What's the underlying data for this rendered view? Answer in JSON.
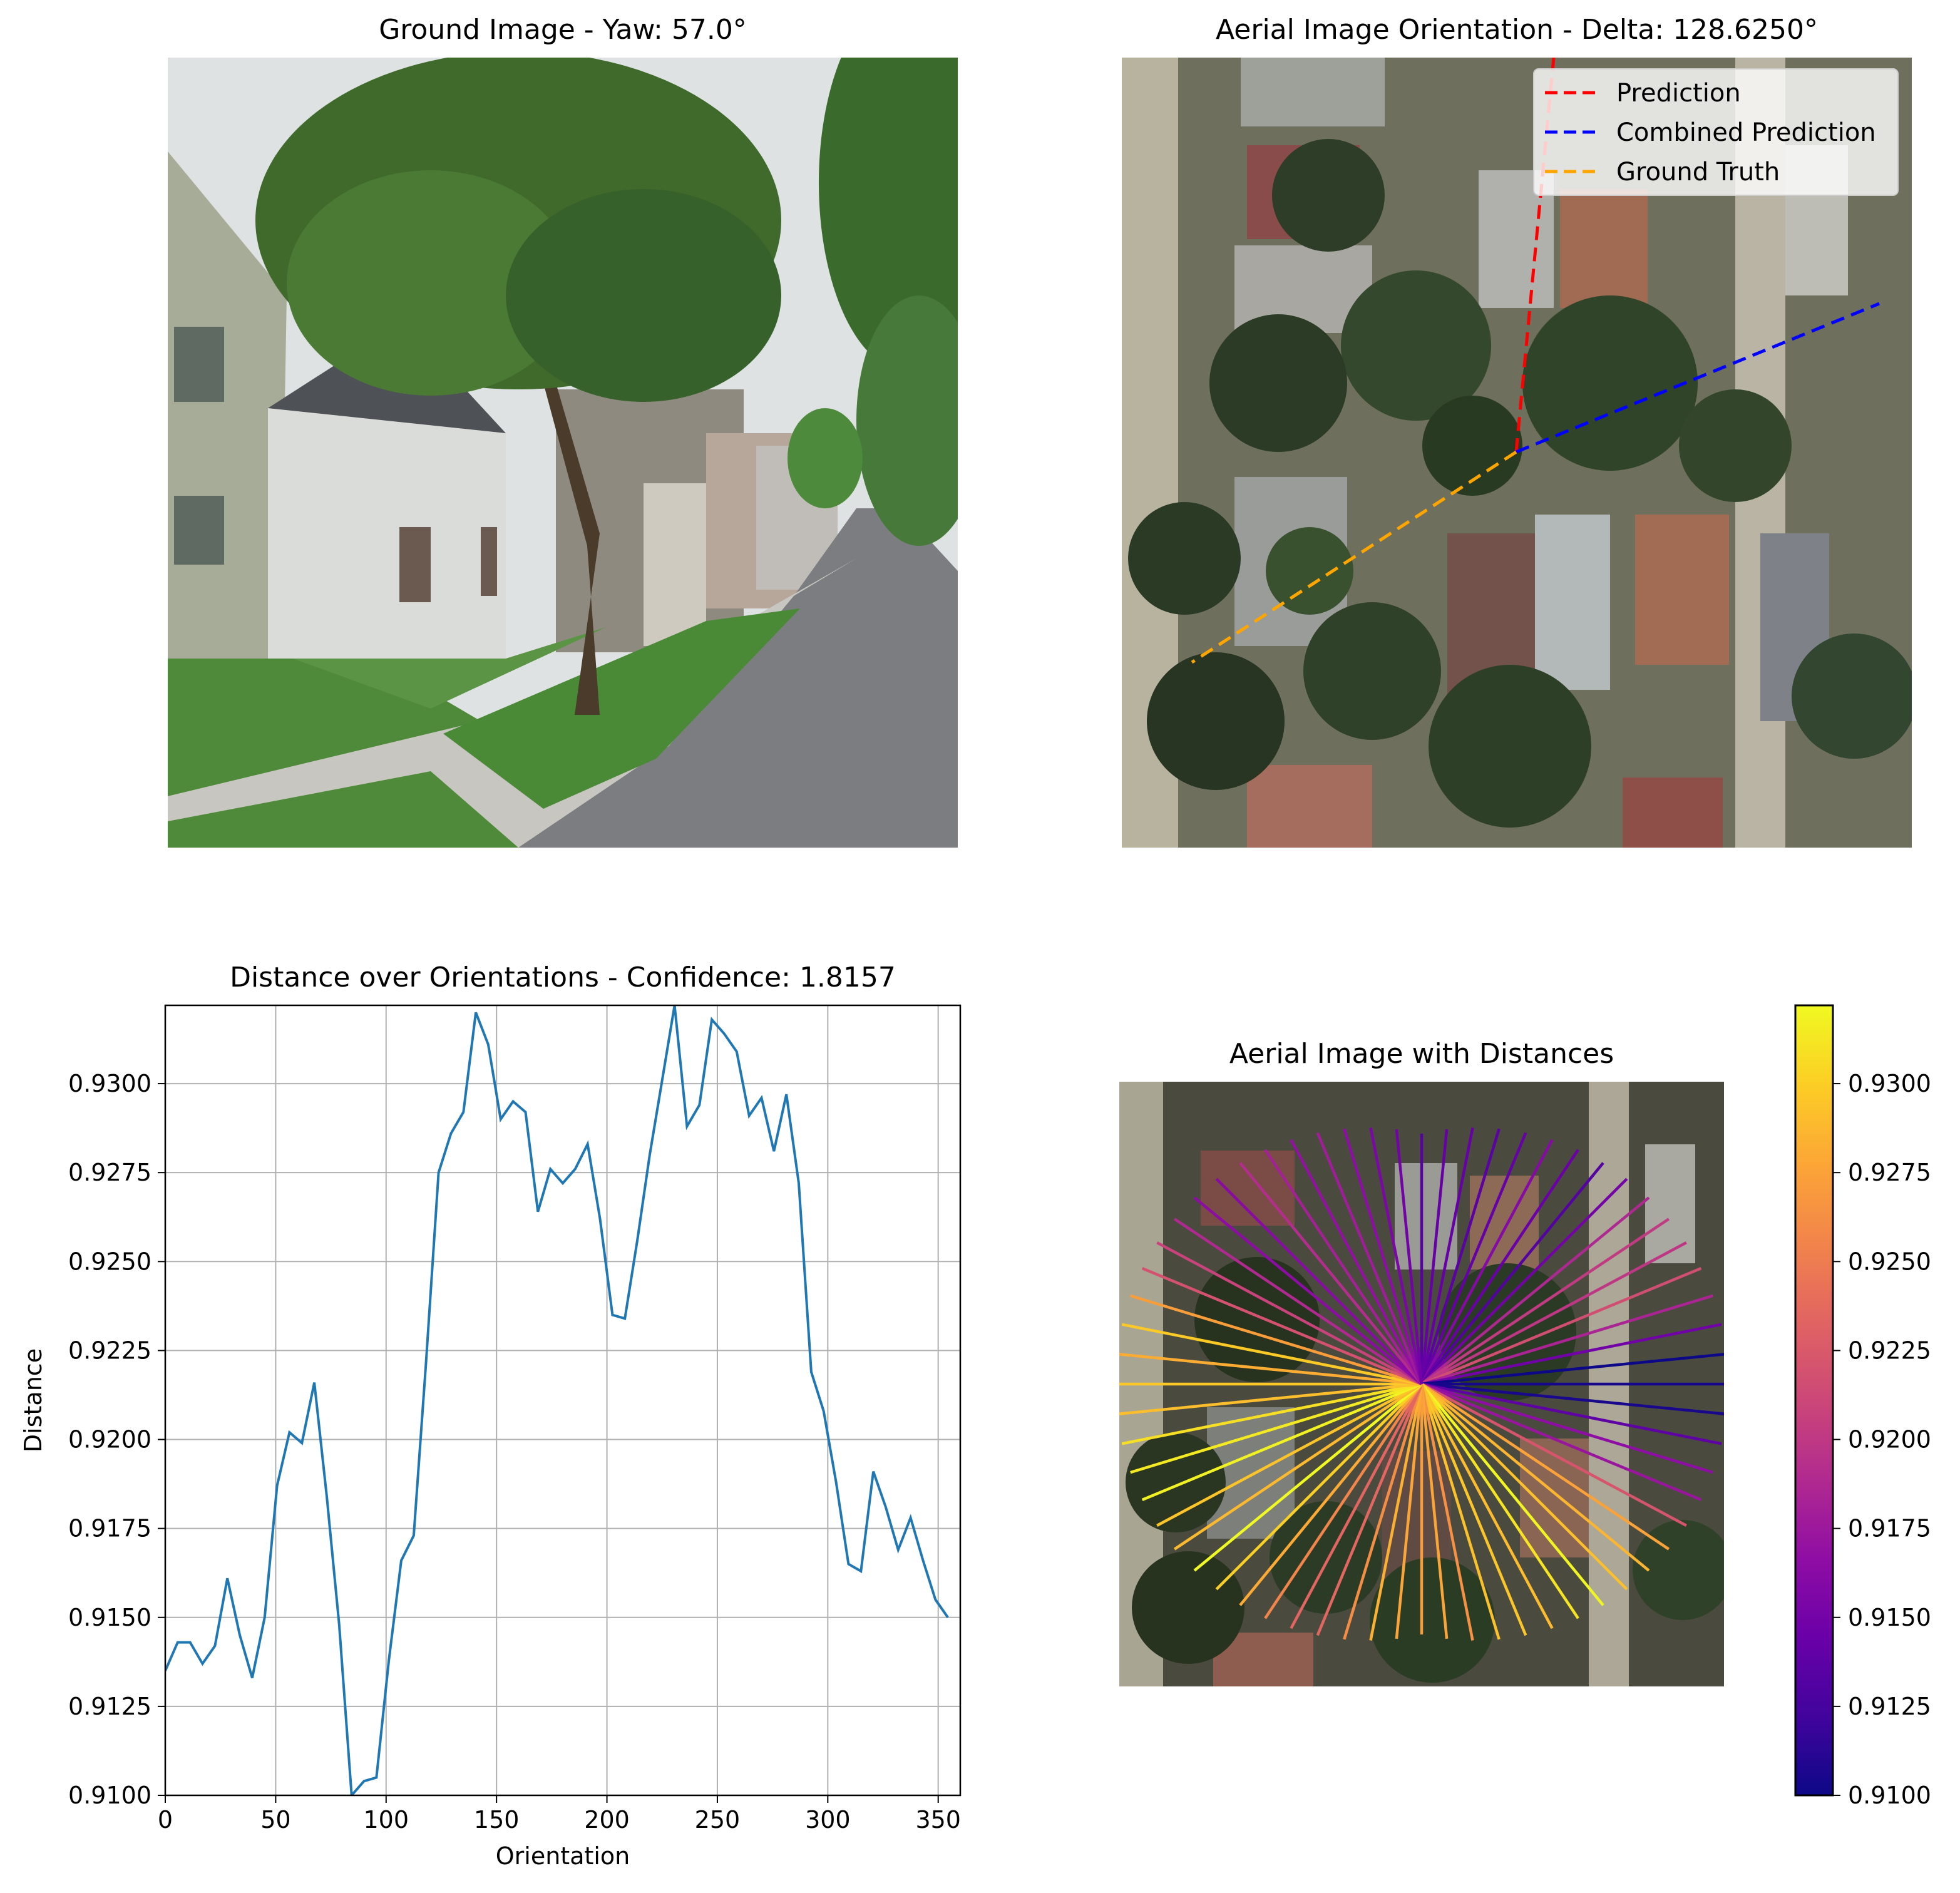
{
  "panels": {
    "ground": {
      "title": "Ground Image - Yaw: 57.0°"
    },
    "aerial": {
      "title": "Aerial Image Orientation - Delta: 128.6250°"
    },
    "distance": {
      "title": "Distance over Orientations - Confidence: 1.8157"
    },
    "aerial_distances": {
      "title": "Aerial Image with Distances"
    }
  },
  "legend": {
    "entries": [
      {
        "label": "Prediction",
        "color": "#ff0000"
      },
      {
        "label": "Combined Prediction",
        "color": "#0000ff"
      },
      {
        "label": "Ground Truth",
        "color": "#ffa500"
      }
    ]
  },
  "chart_data": [
    {
      "type": "line",
      "title": "Distance over Orientations - Confidence: 1.8157",
      "xlabel": "Orientation",
      "ylabel": "Distance",
      "xlim": [
        0,
        360
      ],
      "ylim": [
        0.91,
        0.9322
      ],
      "xticks": [
        "0",
        "50",
        "100",
        "150",
        "200",
        "250",
        "300",
        "350"
      ],
      "yticks": [
        "0.9100",
        "0.9125",
        "0.9150",
        "0.9175",
        "0.9200",
        "0.9225",
        "0.9250",
        "0.9275",
        "0.9300"
      ],
      "grid": true,
      "color": "#1f77b4",
      "x": [
        0,
        5.625,
        11.25,
        16.875,
        22.5,
        28.125,
        33.75,
        39.375,
        45,
        50.625,
        56.25,
        61.875,
        67.5,
        73.125,
        78.75,
        84.375,
        90,
        95.625,
        101.25,
        106.875,
        112.5,
        118.125,
        123.75,
        129.375,
        135,
        140.625,
        146.25,
        151.875,
        157.5,
        163.125,
        168.75,
        174.375,
        180,
        185.625,
        191.25,
        196.875,
        202.5,
        208.125,
        213.75,
        219.375,
        225,
        230.625,
        236.25,
        241.875,
        247.5,
        253.125,
        258.75,
        264.375,
        270,
        275.625,
        281.25,
        286.875,
        292.5,
        298.125,
        303.75,
        309.375,
        315,
        320.625,
        326.25,
        331.875,
        337.5,
        343.125,
        348.75,
        354.375
      ],
      "y": [
        0.9135,
        0.9143,
        0.9143,
        0.9137,
        0.9142,
        0.9161,
        0.9145,
        0.9133,
        0.915,
        0.9187,
        0.9202,
        0.9199,
        0.9216,
        0.9184,
        0.9148,
        0.91,
        0.9104,
        0.9105,
        0.9138,
        0.9166,
        0.9173,
        0.9222,
        0.9275,
        0.9286,
        0.9292,
        0.932,
        0.9311,
        0.929,
        0.9295,
        0.9292,
        0.9264,
        0.9276,
        0.9272,
        0.9276,
        0.9283,
        0.9262,
        0.9235,
        0.9234,
        0.9256,
        0.928,
        0.9301,
        0.9322,
        0.9288,
        0.9294,
        0.9318,
        0.9314,
        0.9309,
        0.9291,
        0.9296,
        0.9281,
        0.9297,
        0.9272,
        0.9219,
        0.9208,
        0.9188,
        0.9165,
        0.9163,
        0.9191,
        0.9181,
        0.9169,
        0.9178,
        0.9166,
        0.9155,
        0.915
      ]
    },
    {
      "type": "colorbar",
      "colormap": "plasma",
      "range": [
        0.91,
        0.9322
      ],
      "ticks": [
        "0.9100",
        "0.9125",
        "0.9150",
        "0.9175",
        "0.9200",
        "0.9225",
        "0.9250",
        "0.9275",
        "0.9300"
      ]
    }
  ]
}
